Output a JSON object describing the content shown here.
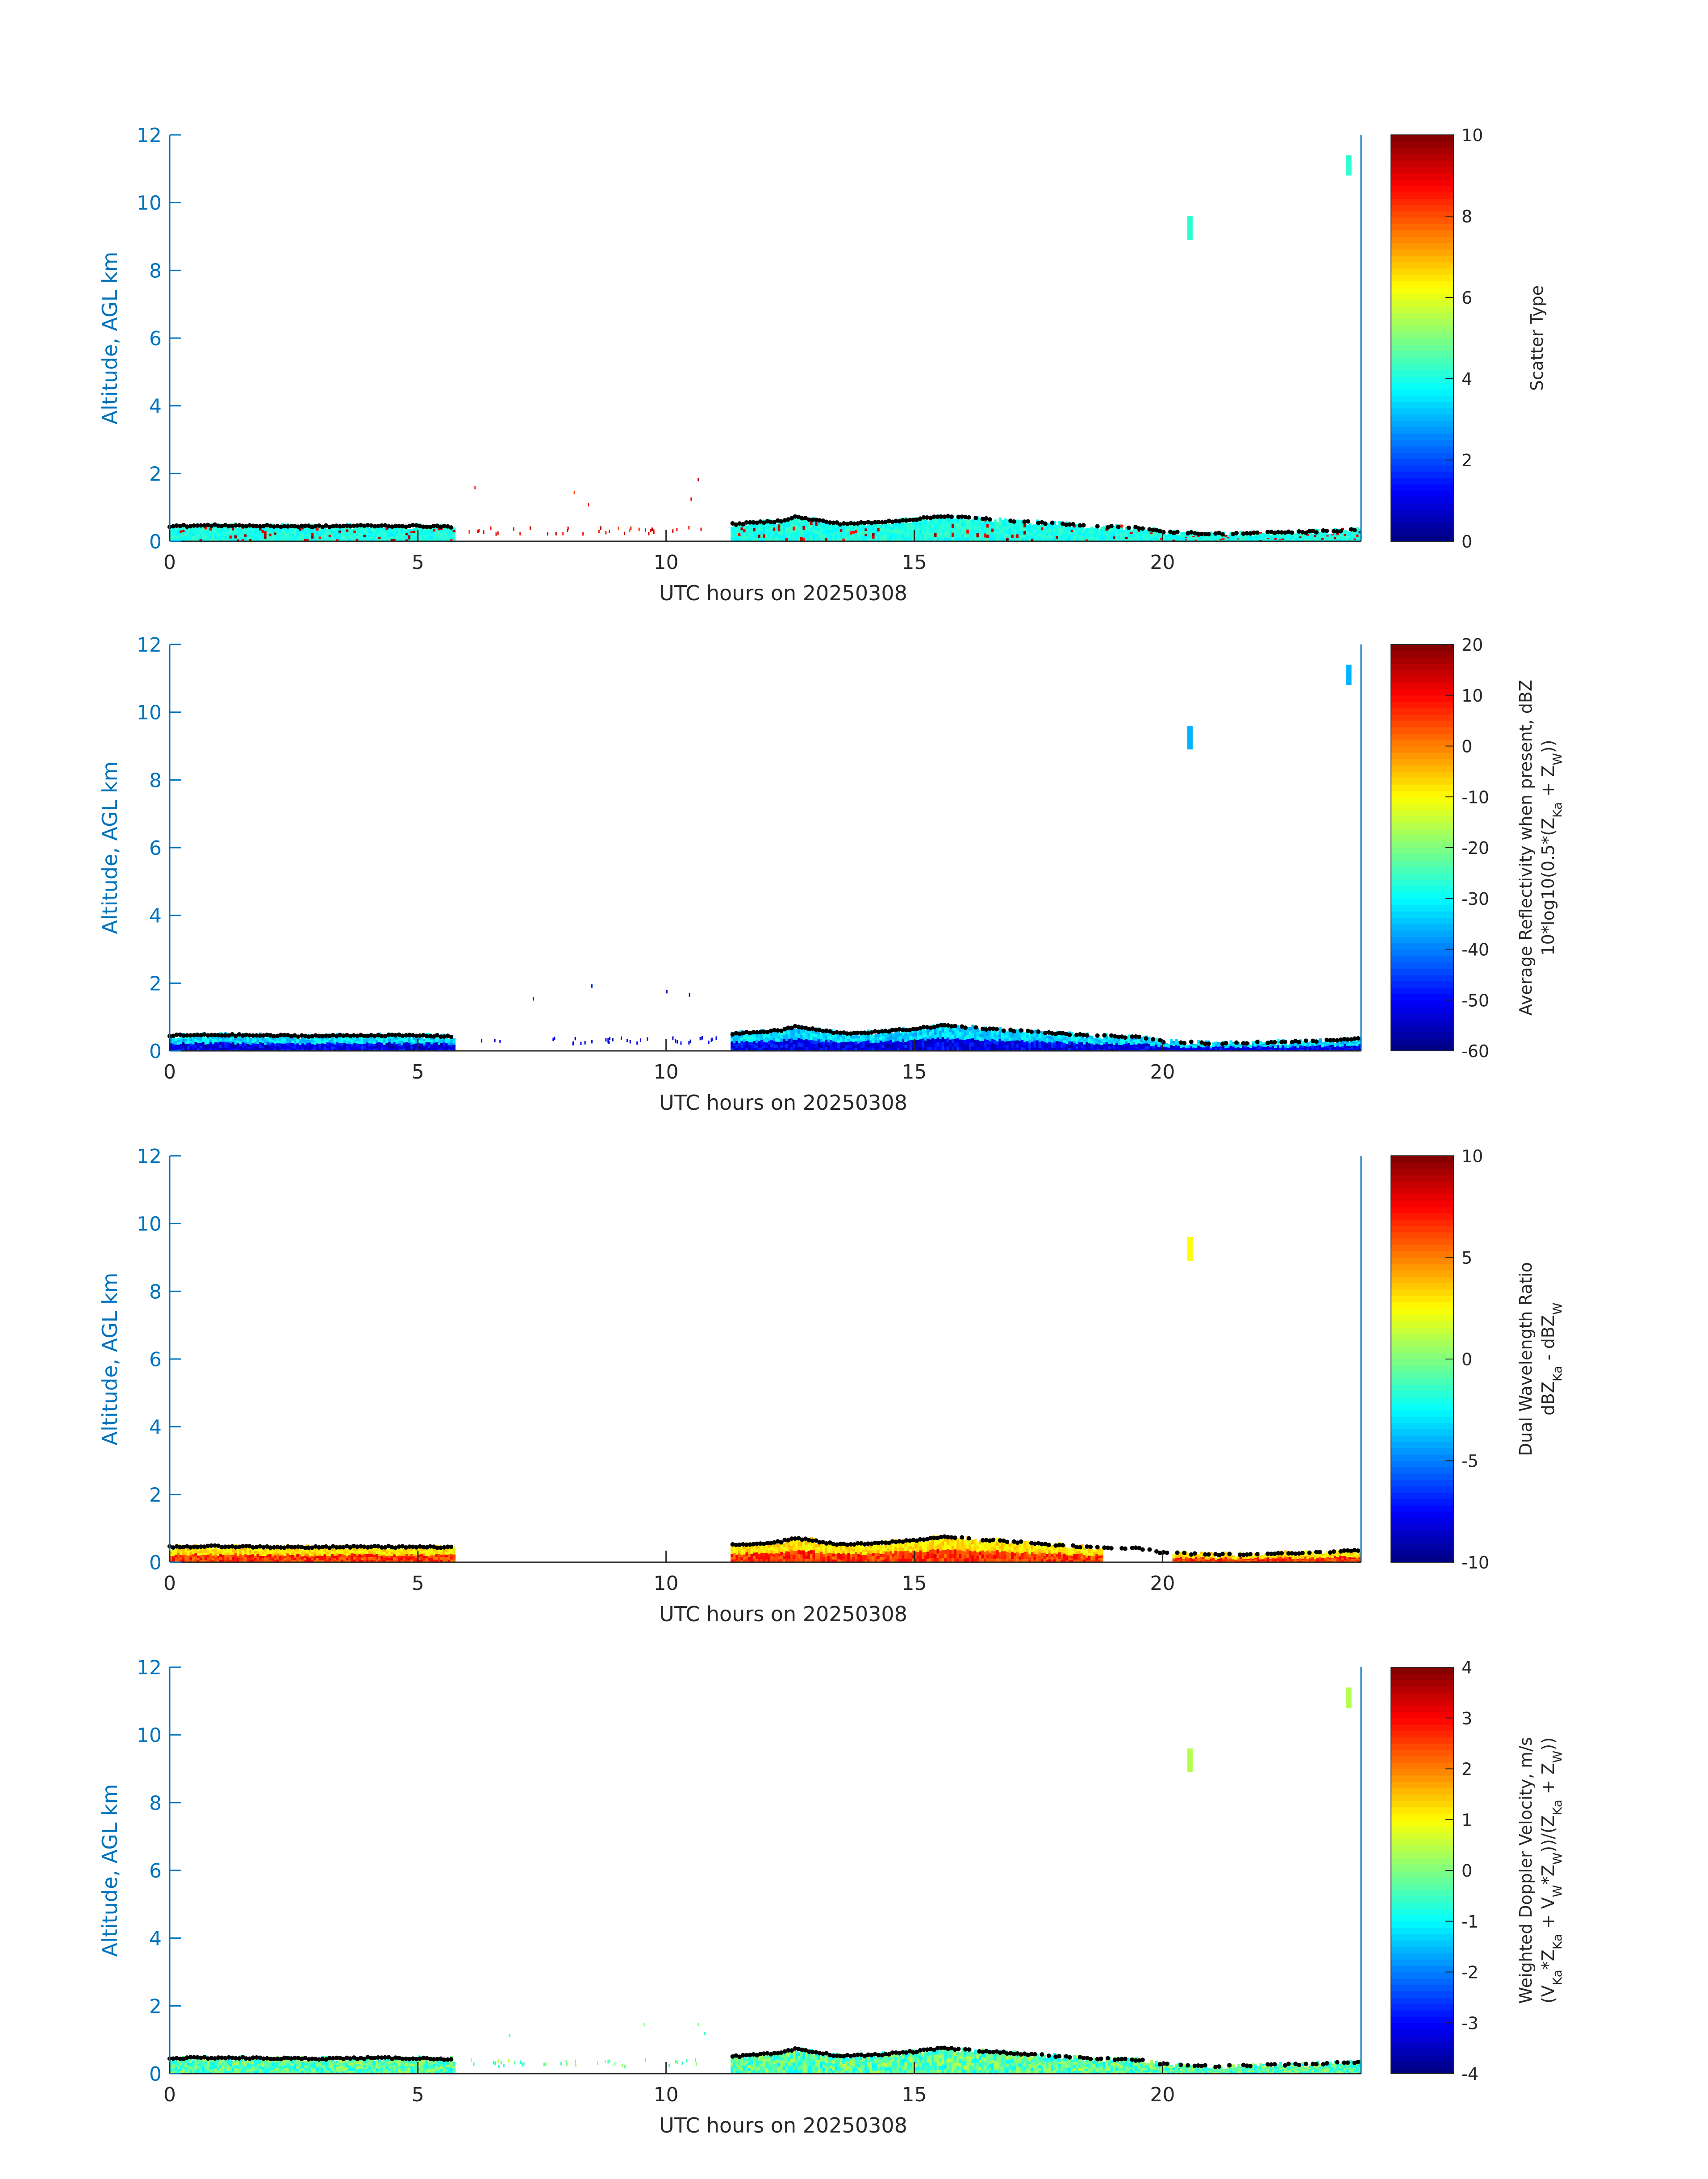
{
  "chart_data": [
    {
      "type": "heatmap",
      "xlabel": "UTC hours on 20250308",
      "ylabel": "Altitude, AGL km",
      "xlim": [
        0,
        24
      ],
      "ylim": [
        0,
        12
      ],
      "xticks": [
        0,
        5,
        10,
        15,
        20
      ],
      "yticks": [
        0,
        2,
        4,
        6,
        8,
        10,
        12
      ],
      "colorbar": {
        "label_lines": [
          "Scatter Type"
        ],
        "range": [
          0,
          10
        ],
        "ticks": [
          0,
          2,
          4,
          6,
          8,
          10
        ],
        "colormap": "jet"
      },
      "scheme": "scatter"
    },
    {
      "type": "heatmap",
      "xlabel": "UTC hours on 20250308",
      "ylabel": "Altitude, AGL km",
      "xlim": [
        0,
        24
      ],
      "ylim": [
        0,
        12
      ],
      "xticks": [
        0,
        5,
        10,
        15,
        20
      ],
      "yticks": [
        0,
        2,
        4,
        6,
        8,
        10,
        12
      ],
      "colorbar": {
        "label_lines": [
          "Average Reflectivity when present, dBZ",
          "10*log10(0.5*(Z_Ka + Z_W))"
        ],
        "range": [
          -60,
          20
        ],
        "ticks": [
          -60,
          -50,
          -40,
          -30,
          -20,
          -10,
          0,
          10,
          20
        ],
        "colormap": "jet"
      },
      "scheme": "refl"
    },
    {
      "type": "heatmap",
      "xlabel": "UTC hours on 20250308",
      "ylabel": "Altitude, AGL km",
      "xlim": [
        0,
        24
      ],
      "ylim": [
        0,
        12
      ],
      "xticks": [
        0,
        5,
        10,
        15,
        20
      ],
      "yticks": [
        0,
        2,
        4,
        6,
        8,
        10,
        12
      ],
      "colorbar": {
        "label_lines": [
          "Dual Wavelength Ratio",
          "dBZ_Ka - dBZ_W"
        ],
        "range": [
          -10,
          10
        ],
        "ticks": [
          -10,
          -5,
          0,
          5,
          10
        ],
        "colormap": "jet"
      },
      "scheme": "dwr"
    },
    {
      "type": "heatmap",
      "xlabel": "UTC hours on 20250308",
      "ylabel": "Altitude, AGL km",
      "xlim": [
        0,
        24
      ],
      "ylim": [
        0,
        12
      ],
      "xticks": [
        0,
        5,
        10,
        15,
        20
      ],
      "yticks": [
        0,
        2,
        4,
        6,
        8,
        10,
        12
      ],
      "colorbar": {
        "label_lines": [
          "Weighted Doppler Velocity, m/s",
          "(V_Ka*Z_Ka + V_W*Z_W))/(Z_Ka + Z_W))"
        ],
        "range": [
          -4,
          4
        ],
        "ticks": [
          -4,
          -3,
          -2,
          -1,
          0,
          1,
          2,
          3,
          4
        ],
        "colormap": "jet"
      },
      "scheme": "vel"
    }
  ],
  "echo_features": {
    "boundary_layer_top_km": [
      [
        0.0,
        0.45
      ],
      [
        1.0,
        0.47
      ],
      [
        2.0,
        0.45
      ],
      [
        3.0,
        0.44
      ],
      [
        4.0,
        0.46
      ],
      [
        5.0,
        0.45
      ],
      [
        5.7,
        0.43
      ],
      [
        11.3,
        0.5
      ],
      [
        11.8,
        0.55
      ],
      [
        12.3,
        0.6
      ],
      [
        12.6,
        0.72
      ],
      [
        12.9,
        0.65
      ],
      [
        13.5,
        0.52
      ],
      [
        14.2,
        0.55
      ],
      [
        15.0,
        0.65
      ],
      [
        15.6,
        0.75
      ],
      [
        16.5,
        0.65
      ],
      [
        17.5,
        0.55
      ],
      [
        18.5,
        0.45
      ],
      [
        19.6,
        0.4
      ],
      [
        20.0,
        0.28
      ],
      [
        21.0,
        0.22
      ],
      [
        22.0,
        0.25
      ],
      [
        23.0,
        0.28
      ],
      [
        24.0,
        0.35
      ]
    ],
    "cirrus_patches": [
      {
        "x": 20.5,
        "y0": 8.9,
        "y1": 9.6
      },
      {
        "x": 23.7,
        "y0": 10.8,
        "y1": 11.4
      }
    ]
  }
}
